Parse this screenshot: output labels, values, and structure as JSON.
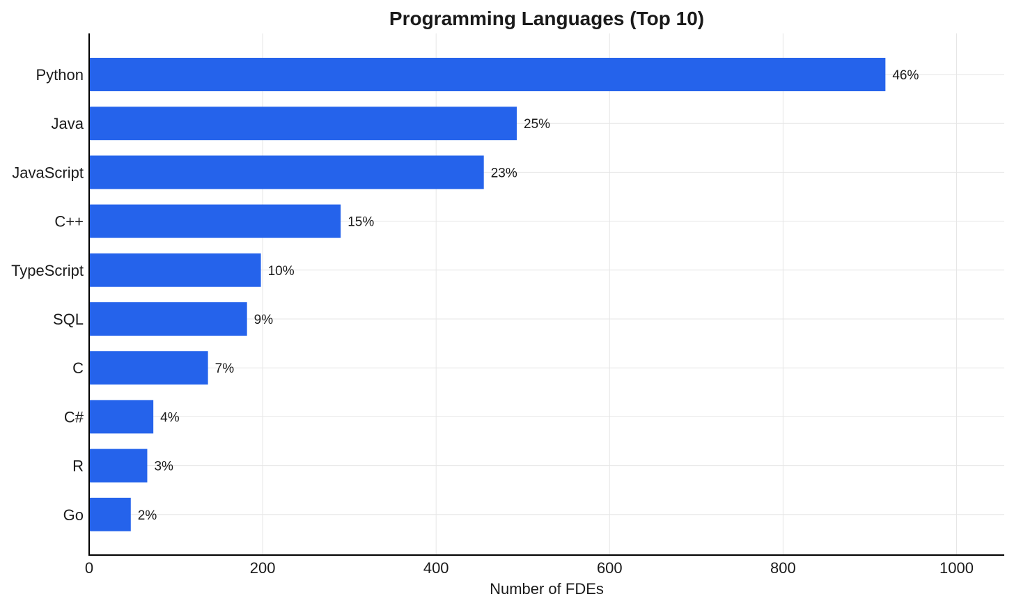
{
  "chart_data": {
    "type": "bar",
    "orientation": "horizontal",
    "title": "Programming Languages (Top 10)",
    "xlabel": "Number of FDEs",
    "ylabel": "",
    "xlim": [
      0,
      1055
    ],
    "xticks": [
      0,
      200,
      400,
      600,
      800,
      1000
    ],
    "grid": true,
    "bar_color": "#2563eb",
    "categories": [
      "Python",
      "Java",
      "JavaScript",
      "C++",
      "TypeScript",
      "SQL",
      "C",
      "C#",
      "R",
      "Go"
    ],
    "values": [
      918,
      493,
      455,
      290,
      198,
      182,
      137,
      74,
      67,
      48
    ],
    "data_labels": [
      "46%",
      "25%",
      "23%",
      "15%",
      "10%",
      "9%",
      "7%",
      "4%",
      "3%",
      "2%"
    ]
  }
}
